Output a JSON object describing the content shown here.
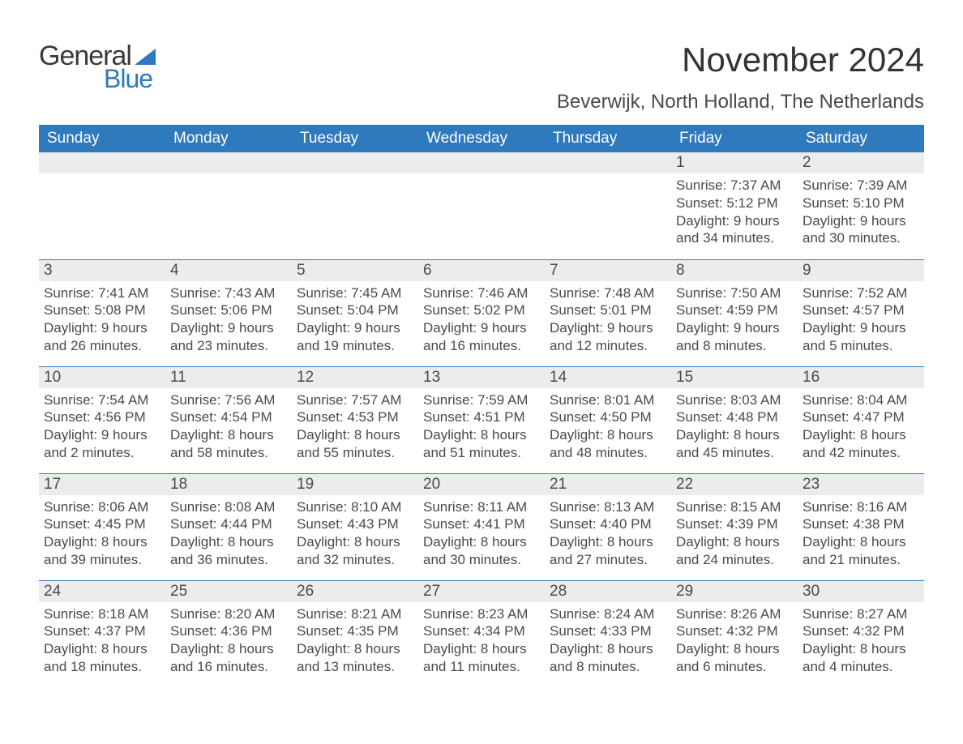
{
  "brand": {
    "word1": "General",
    "word2": "Blue",
    "accent_color": "#2f79bd"
  },
  "title": "November 2024",
  "location": "Beverwijk, North Holland, The Netherlands",
  "colors": {
    "header_bg": "#2f79bd",
    "header_text": "#ffffff",
    "daynum_bg": "#ececec",
    "text": "#4a4a4a",
    "rule": "#2f79bd",
    "page_bg": "#ffffff"
  },
  "weekdays": [
    "Sunday",
    "Monday",
    "Tuesday",
    "Wednesday",
    "Thursday",
    "Friday",
    "Saturday"
  ],
  "grid": {
    "leading_blanks": 5,
    "days": [
      {
        "n": 1,
        "sunrise": "7:37 AM",
        "sunset": "5:12 PM",
        "dl1": "Daylight: 9 hours",
        "dl2": "and 34 minutes."
      },
      {
        "n": 2,
        "sunrise": "7:39 AM",
        "sunset": "5:10 PM",
        "dl1": "Daylight: 9 hours",
        "dl2": "and 30 minutes."
      },
      {
        "n": 3,
        "sunrise": "7:41 AM",
        "sunset": "5:08 PM",
        "dl1": "Daylight: 9 hours",
        "dl2": "and 26 minutes."
      },
      {
        "n": 4,
        "sunrise": "7:43 AM",
        "sunset": "5:06 PM",
        "dl1": "Daylight: 9 hours",
        "dl2": "and 23 minutes."
      },
      {
        "n": 5,
        "sunrise": "7:45 AM",
        "sunset": "5:04 PM",
        "dl1": "Daylight: 9 hours",
        "dl2": "and 19 minutes."
      },
      {
        "n": 6,
        "sunrise": "7:46 AM",
        "sunset": "5:02 PM",
        "dl1": "Daylight: 9 hours",
        "dl2": "and 16 minutes."
      },
      {
        "n": 7,
        "sunrise": "7:48 AM",
        "sunset": "5:01 PM",
        "dl1": "Daylight: 9 hours",
        "dl2": "and 12 minutes."
      },
      {
        "n": 8,
        "sunrise": "7:50 AM",
        "sunset": "4:59 PM",
        "dl1": "Daylight: 9 hours",
        "dl2": "and 8 minutes."
      },
      {
        "n": 9,
        "sunrise": "7:52 AM",
        "sunset": "4:57 PM",
        "dl1": "Daylight: 9 hours",
        "dl2": "and 5 minutes."
      },
      {
        "n": 10,
        "sunrise": "7:54 AM",
        "sunset": "4:56 PM",
        "dl1": "Daylight: 9 hours",
        "dl2": "and 2 minutes."
      },
      {
        "n": 11,
        "sunrise": "7:56 AM",
        "sunset": "4:54 PM",
        "dl1": "Daylight: 8 hours",
        "dl2": "and 58 minutes."
      },
      {
        "n": 12,
        "sunrise": "7:57 AM",
        "sunset": "4:53 PM",
        "dl1": "Daylight: 8 hours",
        "dl2": "and 55 minutes."
      },
      {
        "n": 13,
        "sunrise": "7:59 AM",
        "sunset": "4:51 PM",
        "dl1": "Daylight: 8 hours",
        "dl2": "and 51 minutes."
      },
      {
        "n": 14,
        "sunrise": "8:01 AM",
        "sunset": "4:50 PM",
        "dl1": "Daylight: 8 hours",
        "dl2": "and 48 minutes."
      },
      {
        "n": 15,
        "sunrise": "8:03 AM",
        "sunset": "4:48 PM",
        "dl1": "Daylight: 8 hours",
        "dl2": "and 45 minutes."
      },
      {
        "n": 16,
        "sunrise": "8:04 AM",
        "sunset": "4:47 PM",
        "dl1": "Daylight: 8 hours",
        "dl2": "and 42 minutes."
      },
      {
        "n": 17,
        "sunrise": "8:06 AM",
        "sunset": "4:45 PM",
        "dl1": "Daylight: 8 hours",
        "dl2": "and 39 minutes."
      },
      {
        "n": 18,
        "sunrise": "8:08 AM",
        "sunset": "4:44 PM",
        "dl1": "Daylight: 8 hours",
        "dl2": "and 36 minutes."
      },
      {
        "n": 19,
        "sunrise": "8:10 AM",
        "sunset": "4:43 PM",
        "dl1": "Daylight: 8 hours",
        "dl2": "and 32 minutes."
      },
      {
        "n": 20,
        "sunrise": "8:11 AM",
        "sunset": "4:41 PM",
        "dl1": "Daylight: 8 hours",
        "dl2": "and 30 minutes."
      },
      {
        "n": 21,
        "sunrise": "8:13 AM",
        "sunset": "4:40 PM",
        "dl1": "Daylight: 8 hours",
        "dl2": "and 27 minutes."
      },
      {
        "n": 22,
        "sunrise": "8:15 AM",
        "sunset": "4:39 PM",
        "dl1": "Daylight: 8 hours",
        "dl2": "and 24 minutes."
      },
      {
        "n": 23,
        "sunrise": "8:16 AM",
        "sunset": "4:38 PM",
        "dl1": "Daylight: 8 hours",
        "dl2": "and 21 minutes."
      },
      {
        "n": 24,
        "sunrise": "8:18 AM",
        "sunset": "4:37 PM",
        "dl1": "Daylight: 8 hours",
        "dl2": "and 18 minutes."
      },
      {
        "n": 25,
        "sunrise": "8:20 AM",
        "sunset": "4:36 PM",
        "dl1": "Daylight: 8 hours",
        "dl2": "and 16 minutes."
      },
      {
        "n": 26,
        "sunrise": "8:21 AM",
        "sunset": "4:35 PM",
        "dl1": "Daylight: 8 hours",
        "dl2": "and 13 minutes."
      },
      {
        "n": 27,
        "sunrise": "8:23 AM",
        "sunset": "4:34 PM",
        "dl1": "Daylight: 8 hours",
        "dl2": "and 11 minutes."
      },
      {
        "n": 28,
        "sunrise": "8:24 AM",
        "sunset": "4:33 PM",
        "dl1": "Daylight: 8 hours",
        "dl2": "and 8 minutes."
      },
      {
        "n": 29,
        "sunrise": "8:26 AM",
        "sunset": "4:32 PM",
        "dl1": "Daylight: 8 hours",
        "dl2": "and 6 minutes."
      },
      {
        "n": 30,
        "sunrise": "8:27 AM",
        "sunset": "4:32 PM",
        "dl1": "Daylight: 8 hours",
        "dl2": "and 4 minutes."
      }
    ]
  },
  "labels": {
    "sunrise": "Sunrise:",
    "sunset": "Sunset:"
  }
}
